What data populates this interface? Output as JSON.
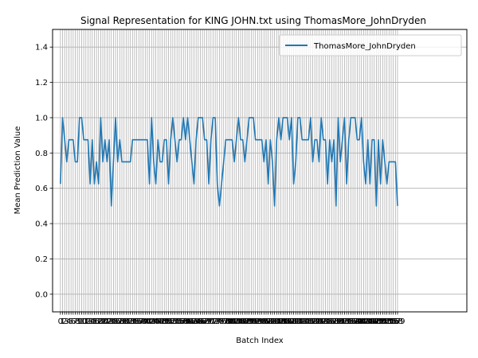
{
  "chart_data": {
    "type": "line",
    "title": "Signal Representation for KING JOHN.txt using ThomasMore_JohnDryden",
    "xlabel": "Batch Index",
    "ylabel": "Mean Prediction Value",
    "ylim": [
      -0.1,
      1.5
    ],
    "xlim": [
      -3.7,
      191.7
    ],
    "y_ticks": [
      "0.0",
      "0.2",
      "0.4",
      "0.6",
      "0.8",
      "1.0",
      "1.2",
      "1.4"
    ],
    "grid": true,
    "legend_position": "top-right",
    "color": "#1f77b4",
    "series": [
      {
        "name": "ThomasMore_JohnDryden",
        "values": [
          0.625,
          1.0,
          0.875,
          0.75,
          0.875,
          0.875,
          0.875,
          0.75,
          0.75,
          1.0,
          1.0,
          0.875,
          0.875,
          0.875,
          0.625,
          0.875,
          0.625,
          0.75,
          0.625,
          1.0,
          0.75,
          0.875,
          0.75,
          0.875,
          0.5,
          0.75,
          1.0,
          0.75,
          0.875,
          0.75,
          0.75,
          0.75,
          0.75,
          0.75,
          0.875,
          0.875,
          0.875,
          0.875,
          0.875,
          0.875,
          0.875,
          0.875,
          0.625,
          1.0,
          0.75,
          0.625,
          0.875,
          0.75,
          0.75,
          0.875,
          0.875,
          0.625,
          0.875,
          1.0,
          0.875,
          0.75,
          0.875,
          0.875,
          1.0,
          0.875,
          1.0,
          0.875,
          0.75,
          0.625,
          0.875,
          1.0,
          1.0,
          1.0,
          0.875,
          0.875,
          0.625,
          0.875,
          1.0,
          1.0,
          0.625,
          0.5,
          0.625,
          0.75,
          0.875,
          0.875,
          0.875,
          0.875,
          0.75,
          0.875,
          1.0,
          0.875,
          0.875,
          0.75,
          0.875,
          1.0,
          1.0,
          1.0,
          0.875,
          0.875,
          0.875,
          0.875,
          0.75,
          0.875,
          0.625,
          0.875,
          0.75,
          0.5,
          0.875,
          1.0,
          0.875,
          1.0,
          1.0,
          1.0,
          0.875,
          1.0,
          0.625,
          0.75,
          1.0,
          1.0,
          0.875,
          0.875,
          0.875,
          0.875,
          1.0,
          0.75,
          0.875,
          0.875,
          0.75,
          1.0,
          0.875,
          0.875,
          0.625,
          0.875,
          0.75,
          0.875,
          0.5,
          1.0,
          0.75,
          0.875,
          1.0,
          0.625,
          0.875,
          1.0,
          1.0,
          1.0,
          0.875,
          0.875,
          1.0,
          0.75,
          0.625,
          0.875,
          0.625,
          0.875,
          0.875,
          0.5,
          0.875,
          0.625,
          0.875,
          0.75,
          0.625,
          0.75,
          0.75,
          0.75,
          0.75,
          0.5
        ]
      }
    ],
    "x_tick_labels_visible": [
      "0",
      "2",
      "4",
      "5",
      "6",
      "8",
      "183"
    ]
  }
}
